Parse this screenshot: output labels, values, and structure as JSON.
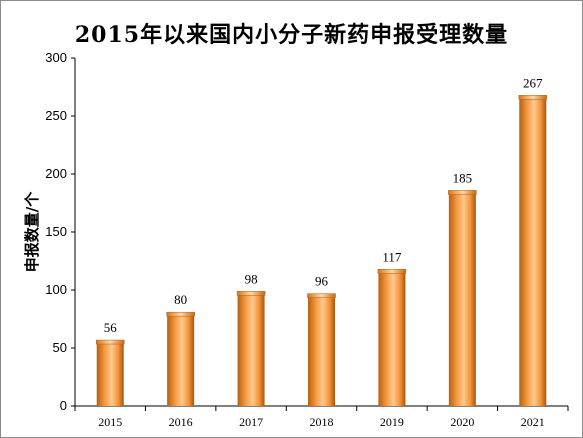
{
  "chart_data": {
    "type": "bar",
    "title": "2015年以来国内小分子新药申报受理数量",
    "xlabel": "",
    "ylabel": "申报数量/个",
    "categories": [
      "2015",
      "2016",
      "2017",
      "2018",
      "2019",
      "2020",
      "2021"
    ],
    "values": [
      56,
      80,
      98,
      96,
      117,
      185,
      267
    ],
    "ylim": [
      0,
      300
    ],
    "yticks": [
      0,
      50,
      100,
      150,
      200,
      250,
      300
    ],
    "grid": false,
    "legend": "none",
    "data_labels": true,
    "bar_color": "#f5963a"
  }
}
